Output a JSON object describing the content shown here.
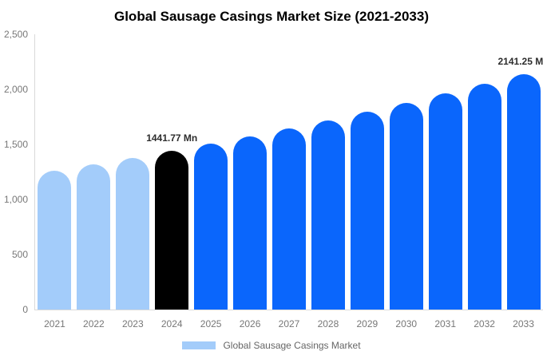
{
  "title": "Global Sausage Casings Market Size (2021-2033)",
  "colors": {
    "historical_bar": "#a3ccfa",
    "highlight_bar": "#000000",
    "forecast_bar": "#0a66fc",
    "axis_line": "#d9d9d9",
    "axis_text": "#777777",
    "bar_label_text": "#2d2d2d",
    "legend_text": "#666666"
  },
  "chart_data": {
    "type": "bar",
    "title": "Global Sausage Casings Market Size (2021-2033)",
    "unit": "Mn",
    "categories": [
      "2021",
      "2022",
      "2023",
      "2024",
      "2025",
      "2026",
      "2027",
      "2028",
      "2029",
      "2030",
      "2031",
      "2032",
      "2033"
    ],
    "values": [
      1263.7,
      1320.5,
      1379.8,
      1441.77,
      1506.6,
      1574.2,
      1645.0,
      1718.9,
      1796.1,
      1876.8,
      1961.1,
      2049.3,
      2141.25
    ],
    "bar_colors": [
      "#a3ccfa",
      "#a3ccfa",
      "#a3ccfa",
      "#000000",
      "#0a66fc",
      "#0a66fc",
      "#0a66fc",
      "#0a66fc",
      "#0a66fc",
      "#0a66fc",
      "#0a66fc",
      "#0a66fc",
      "#0a66fc"
    ],
    "value_labels": {
      "2024": "1441.77 Mn",
      "2033": "2141.25 Mn"
    },
    "xlabel": "",
    "ylabel": "",
    "ylim": [
      0,
      2500
    ],
    "yticks": [
      {
        "value": 0,
        "label": "0"
      },
      {
        "value": 500,
        "label": "500"
      },
      {
        "value": 1000,
        "label": "1,000"
      },
      {
        "value": 1500,
        "label": "1,500"
      },
      {
        "value": 2000,
        "label": "2,000"
      },
      {
        "value": 2500,
        "label": "2,500"
      }
    ],
    "grid": false,
    "legend_position": "bottom",
    "legend": [
      {
        "label": "Global Sausage Casings Market",
        "swatch_color": "#a3ccfa"
      }
    ]
  }
}
